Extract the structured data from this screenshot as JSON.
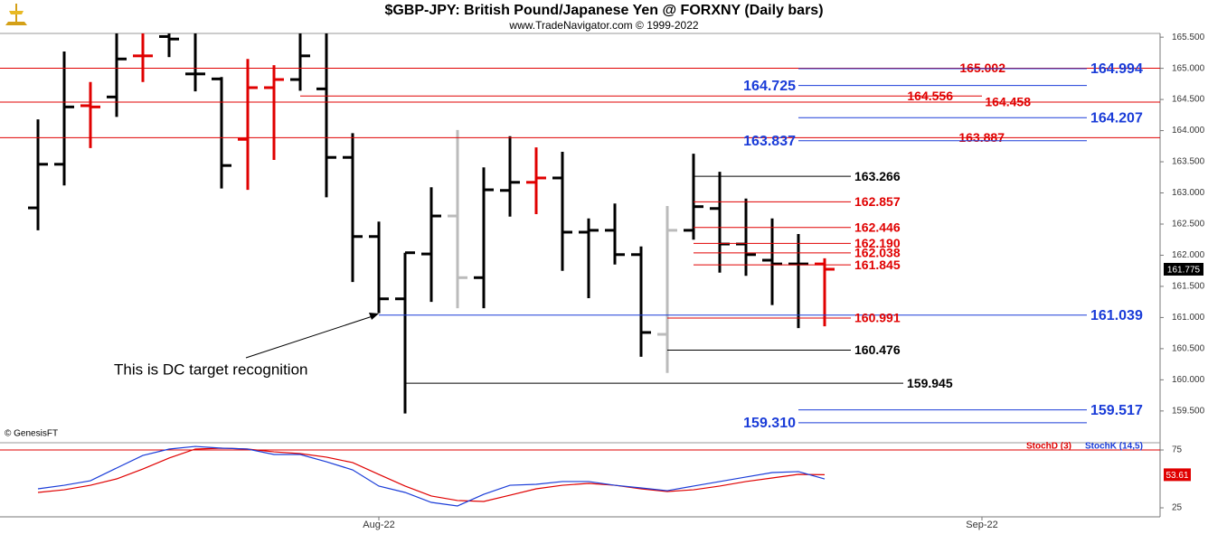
{
  "chart_data": [
    {
      "type": "ohlc",
      "title": "$GBP-JPY:  British Pound/Japanese Yen @ FORXNY  (Daily bars)",
      "subtitle": "www.TradeNavigator.com © 1999-2022",
      "watermark": "© GenesisFT",
      "annotation": "This is DC target recognition",
      "categories": [
        null,
        null,
        null,
        null,
        null,
        null,
        null,
        null,
        null,
        null,
        null,
        null,
        null,
        "Aug-22",
        null,
        null,
        null,
        null,
        null,
        null,
        null,
        null,
        null,
        null,
        null,
        null,
        null,
        null,
        null,
        null,
        null,
        null,
        null,
        null,
        null,
        null,
        "Sep-22",
        null,
        null,
        null,
        null,
        null,
        null
      ],
      "open": [
        162.76,
        163.46,
        164.4,
        164.54,
        165.2,
        165.51,
        164.91,
        164.83,
        163.86,
        164.69,
        164.82,
        164.67,
        163.57,
        162.3,
        161.3,
        162.02,
        162.63,
        161.64,
        163.04,
        163.17,
        163.24,
        162.37,
        162.4,
        162.01,
        160.73,
        162.4,
        162.75,
        162.18,
        161.92,
        161.86,
        161.86,
        null,
        null,
        null,
        null,
        null,
        null,
        null,
        null,
        null,
        null,
        null,
        null
      ],
      "high": [
        164.18,
        165.27,
        164.78,
        165.56,
        165.56,
        165.56,
        165.56,
        164.86,
        165.15,
        165.05,
        165.56,
        165.56,
        163.96,
        162.54,
        162.04,
        163.09,
        164.01,
        163.41,
        163.91,
        163.73,
        163.66,
        162.59,
        162.83,
        162.14,
        162.79,
        163.63,
        163.34,
        162.91,
        162.59,
        162.34,
        161.95,
        null,
        null,
        null,
        null,
        null,
        null,
        null,
        null,
        null,
        null,
        null,
        null
      ],
      "low": [
        162.4,
        163.12,
        163.72,
        164.22,
        164.78,
        165.18,
        164.63,
        163.07,
        163.05,
        163.53,
        164.64,
        162.93,
        161.57,
        161.07,
        159.46,
        161.25,
        161.15,
        161.15,
        162.62,
        162.66,
        161.75,
        161.31,
        161.85,
        160.37,
        160.11,
        162.25,
        161.72,
        161.67,
        161.2,
        160.83,
        160.86,
        null,
        null,
        null,
        null,
        null,
        null,
        null,
        null,
        null,
        null,
        null,
        null
      ],
      "close": [
        163.46,
        164.38,
        164.38,
        165.15,
        165.2,
        165.47,
        164.91,
        163.44,
        164.69,
        164.82,
        165.2,
        163.57,
        162.3,
        161.3,
        162.04,
        162.63,
        161.64,
        163.05,
        163.17,
        163.24,
        162.37,
        162.4,
        162.01,
        160.76,
        162.4,
        162.78,
        162.18,
        162.01,
        161.86,
        161.86,
        161.775,
        null,
        null,
        null,
        null,
        null,
        null,
        null,
        null,
        null,
        null,
        null,
        null
      ],
      "colors": [
        "#000",
        "#000",
        "#e00000",
        "#000",
        "#e00000",
        "#000",
        "#000",
        "#000",
        "#e00000",
        "#e00000",
        "#000",
        "#000",
        "#000",
        "#000",
        "#000",
        "#000",
        "#bbbbbb",
        "#000",
        "#000",
        "#e00000",
        "#000",
        "#000",
        "#000",
        "#000",
        "#bbbbbb",
        "#000",
        "#000",
        "#000",
        "#000",
        "#000",
        "#e00000",
        null,
        null,
        null,
        null,
        null,
        null,
        null,
        null,
        null,
        null,
        null,
        null
      ],
      "last_value": 161.775,
      "ylim": [
        158.99,
        165.56
      ],
      "yticks": [
        {
          "value": 159.5,
          "label": "159.500"
        },
        {
          "value": 160,
          "label": "160.000"
        },
        {
          "value": 160.5,
          "label": "160.500"
        },
        {
          "value": 161,
          "label": "161.000"
        },
        {
          "value": 161.5,
          "label": "161.500"
        },
        {
          "value": 162,
          "label": "162.000"
        },
        {
          "value": 162.5,
          "label": "162.500"
        },
        {
          "value": 163,
          "label": "163.000"
        },
        {
          "value": 163.5,
          "label": "163.500"
        },
        {
          "value": 164,
          "label": "164.000"
        },
        {
          "value": 164.5,
          "label": "164.500"
        },
        {
          "value": 165,
          "label": "165.000"
        },
        {
          "value": 165.5,
          "label": "165.500"
        }
      ],
      "levels": [
        {
          "value": 165.002,
          "color": "#e00000",
          "full": true,
          "side": "inside"
        },
        {
          "value": 164.994,
          "color": "#1a3cd8",
          "from": 29,
          "to": 40,
          "side": "right"
        },
        {
          "value": 164.725,
          "color": "#1a3cd8",
          "from": 29,
          "to": 40,
          "side": "left"
        },
        {
          "value": 164.556,
          "color": "#e00000",
          "from": 10,
          "to": 36,
          "side": "inside"
        },
        {
          "value": 164.458,
          "color": "#e00000",
          "full": true,
          "side": "inside"
        },
        {
          "value": 164.207,
          "color": "#1a3cd8",
          "from": 29,
          "to": 40,
          "side": "right"
        },
        {
          "value": 163.887,
          "color": "#e00000",
          "full": true,
          "side": "inside"
        },
        {
          "value": 163.837,
          "color": "#1a3cd8",
          "from": 29,
          "to": 40,
          "side": "left"
        },
        {
          "value": 163.266,
          "color": "#000",
          "from": 25,
          "to": 31,
          "side": "right"
        },
        {
          "value": 162.857,
          "color": "#e00000",
          "from": 25,
          "to": 31,
          "side": "right"
        },
        {
          "value": 162.446,
          "color": "#e00000",
          "from": 25,
          "to": 31,
          "side": "right"
        },
        {
          "value": 162.19,
          "label": "162.190",
          "color": "#e00000",
          "from": 25,
          "to": 31,
          "side": "right"
        },
        {
          "value": 162.038,
          "color": "#e00000",
          "from": 25,
          "to": 31,
          "side": "right"
        },
        {
          "value": 161.845,
          "color": "#e00000",
          "from": 25,
          "to": 31,
          "side": "right"
        },
        {
          "value": 161.039,
          "color": "#1a3cd8",
          "from": 13,
          "to": 40,
          "side": "right"
        },
        {
          "value": 160.991,
          "color": "#e00000",
          "from": 24,
          "to": 31,
          "side": "right"
        },
        {
          "value": 160.476,
          "color": "#000",
          "from": 24,
          "to": 31,
          "side": "right"
        },
        {
          "value": 159.945,
          "color": "#000",
          "from": 14,
          "to": 33,
          "side": "right"
        },
        {
          "value": 159.517,
          "color": "#1a3cd8",
          "from": 29,
          "to": 40,
          "side": "right"
        },
        {
          "value": 159.31,
          "label": "159.310",
          "color": "#1a3cd8",
          "from": 29,
          "to": 40,
          "side": "left"
        }
      ]
    },
    {
      "type": "line",
      "series": [
        {
          "name": "StochD (3)",
          "color": "#e00000",
          "values": [
            38.3,
            40.6,
            44.5,
            50.0,
            58.6,
            68.0,
            75.8,
            76.6,
            75.8,
            73.4,
            71.9,
            68.8,
            64.1,
            53.9,
            43.8,
            35.2,
            31.3,
            30.5,
            35.9,
            41.4,
            44.5,
            46.1,
            44.5,
            41.4,
            39.1,
            40.6,
            43.8,
            47.7,
            50.8,
            53.9,
            53.61,
            null,
            null,
            null,
            null,
            null,
            null,
            null,
            null,
            null,
            null,
            null,
            null
          ]
        },
        {
          "name": "StochK (14,5)",
          "color": "#1a3cd8",
          "values": [
            41.4,
            44.5,
            48.4,
            59.4,
            70.3,
            75.8,
            78.1,
            76.6,
            75.8,
            71.1,
            71.1,
            64.8,
            57.8,
            43.8,
            38.3,
            29.7,
            26.6,
            36.7,
            44.5,
            45.3,
            47.7,
            47.7,
            44.5,
            42.2,
            39.8,
            43.8,
            47.7,
            51.6,
            55.5,
            56.3,
            50.0,
            null,
            null,
            null,
            null,
            null,
            null,
            null,
            null,
            null,
            null,
            null,
            null
          ]
        }
      ],
      "reference_lines": [
        {
          "value": 75,
          "color": "#e00000"
        }
      ],
      "ylim": [
        17.2,
        79.7
      ],
      "yticks": [
        25,
        75
      ]
    }
  ]
}
